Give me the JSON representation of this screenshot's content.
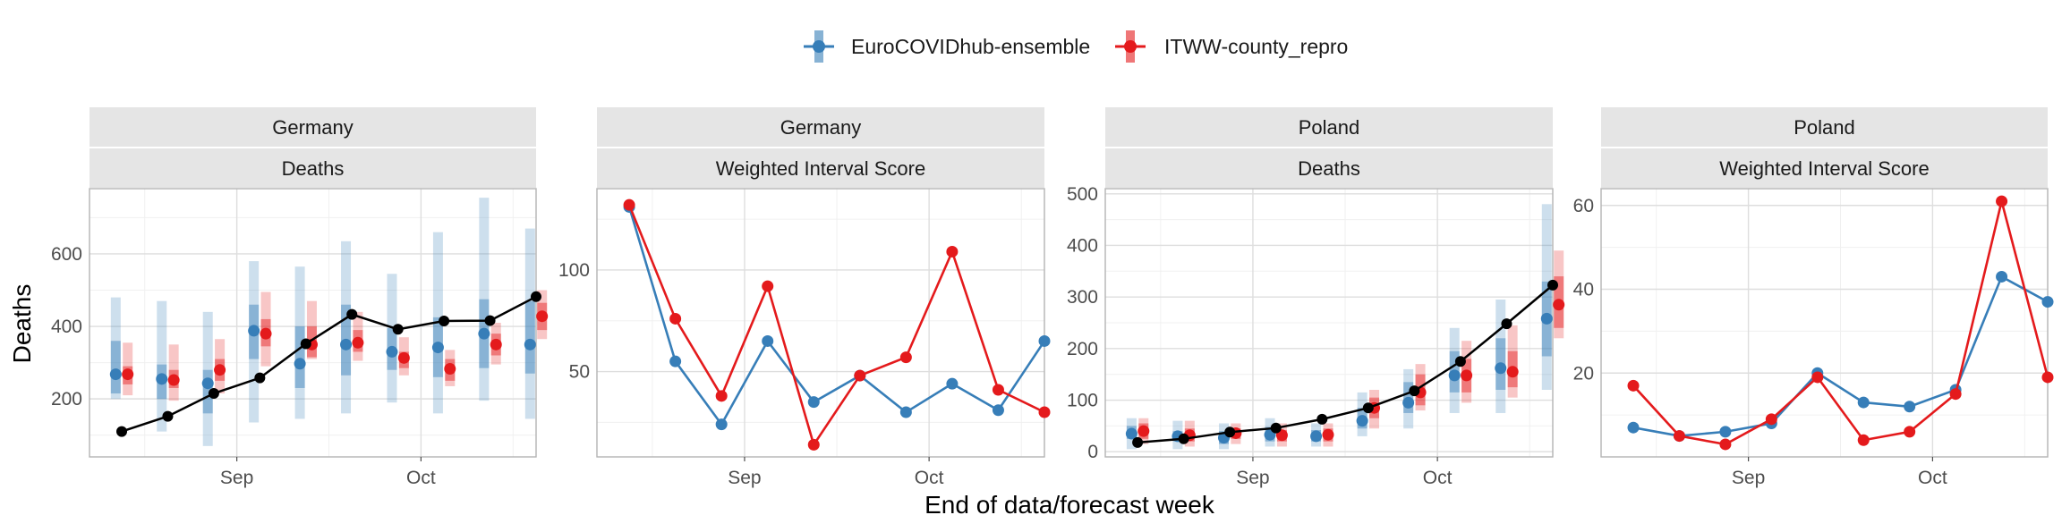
{
  "legend": {
    "position": "top",
    "entries": [
      {
        "name": "EuroCOVIDhub-ensemble",
        "color": "#377EB8"
      },
      {
        "name": "ITWW-county_repro",
        "color": "#E41A1C"
      }
    ]
  },
  "axes": {
    "xlabel": "End of data/forecast week",
    "ylabel": "Deaths"
  },
  "chart_data": [
    {
      "type": "line",
      "panel": "germany-deaths",
      "facet_labels": [
        "Germany",
        "Deaths"
      ],
      "x_ticks": [
        {
          "label": "Sep",
          "pos": 3.5
        },
        {
          "label": "Oct",
          "pos": 7.5
        }
      ],
      "x_range": [
        0.3,
        10.0
      ],
      "ylim": [
        40,
        780
      ],
      "y_ticks": [
        200,
        400,
        600
      ],
      "y_minor": [
        100,
        300,
        500,
        700
      ],
      "observed": [
        110,
        152,
        215,
        258,
        352,
        433,
        392,
        415,
        416,
        482
      ],
      "series": [
        {
          "name": "EuroCOVIDhub-ensemble",
          "median": [
            268,
            255,
            243,
            388,
            297,
            350,
            330,
            342,
            380,
            350
          ],
          "inner": [
            [
              215,
              360
            ],
            [
              200,
              295
            ],
            [
              160,
              280
            ],
            [
              310,
              460
            ],
            [
              230,
              400
            ],
            [
              265,
              460
            ],
            [
              280,
              395
            ],
            [
              260,
              425
            ],
            [
              285,
              475
            ],
            [
              270,
              470
            ]
          ],
          "outer": [
            [
              200,
              480
            ],
            [
              110,
              470
            ],
            [
              70,
              440
            ],
            [
              135,
              580
            ],
            [
              145,
              565
            ],
            [
              160,
              635
            ],
            [
              190,
              545
            ],
            [
              160,
              660
            ],
            [
              195,
              755
            ],
            [
              145,
              670
            ]
          ]
        },
        {
          "name": "ITWW-county_repro",
          "median": [
            268,
            252,
            280,
            380,
            350,
            355,
            313,
            283,
            350,
            428
          ],
          "inner": [
            [
              240,
              290
            ],
            [
              230,
              280
            ],
            [
              250,
              310
            ],
            [
              345,
              420
            ],
            [
              315,
              400
            ],
            [
              330,
              390
            ],
            [
              285,
              330
            ],
            [
              250,
              310
            ],
            [
              320,
              380
            ],
            [
              390,
              465
            ]
          ],
          "outer": [
            [
              210,
              355
            ],
            [
              195,
              350
            ],
            [
              215,
              365
            ],
            [
              290,
              495
            ],
            [
              310,
              470
            ],
            [
              305,
              440
            ],
            [
              265,
              370
            ],
            [
              235,
              335
            ],
            [
              295,
              410
            ],
            [
              365,
              500
            ]
          ]
        }
      ]
    },
    {
      "type": "line",
      "panel": "germany-wis",
      "facet_labels": [
        "Germany",
        "Weighted Interval Score"
      ],
      "x_ticks": [
        {
          "label": "Sep",
          "pos": 3.5
        },
        {
          "label": "Oct",
          "pos": 7.5
        }
      ],
      "x_range": [
        0.3,
        10.0
      ],
      "ylim": [
        8,
        140
      ],
      "y_ticks": [
        50,
        100
      ],
      "y_minor": [
        25,
        75,
        125
      ],
      "series": [
        {
          "name": "EuroCOVIDhub-ensemble",
          "values": [
            131,
            55,
            24,
            65,
            35,
            48,
            30,
            44,
            31,
            65
          ]
        },
        {
          "name": "ITWW-county_repro",
          "values": [
            132,
            76,
            38,
            92,
            14,
            48,
            57,
            109,
            41,
            30
          ]
        }
      ]
    },
    {
      "type": "line",
      "panel": "poland-deaths",
      "facet_labels": [
        "Poland",
        "Deaths"
      ],
      "x_ticks": [
        {
          "label": "Sep",
          "pos": 3.5
        },
        {
          "label": "Oct",
          "pos": 7.5
        }
      ],
      "x_range": [
        0.3,
        10.0
      ],
      "ylim": [
        -10,
        510
      ],
      "y_ticks": [
        0,
        100,
        200,
        300,
        400,
        500
      ],
      "y_minor": [
        50,
        150,
        250,
        350,
        450
      ],
      "observed": [
        18,
        25,
        38,
        46,
        63,
        85,
        118,
        175,
        248,
        323
      ],
      "series": [
        {
          "name": "EuroCOVIDhub-ensemble",
          "median": [
            35,
            30,
            27,
            33,
            30,
            60,
            95,
            148,
            162,
            258
          ],
          "inner": [
            [
              25,
              50
            ],
            [
              20,
              40
            ],
            [
              15,
              40
            ],
            [
              20,
              48
            ],
            [
              20,
              42
            ],
            [
              45,
              85
            ],
            [
              75,
              135
            ],
            [
              115,
              195
            ],
            [
              120,
              220
            ],
            [
              185,
              330
            ]
          ],
          "outer": [
            [
              5,
              65
            ],
            [
              5,
              60
            ],
            [
              5,
              55
            ],
            [
              10,
              65
            ],
            [
              10,
              55
            ],
            [
              30,
              115
            ],
            [
              45,
              160
            ],
            [
              75,
              240
            ],
            [
              75,
              295
            ],
            [
              120,
              480
            ]
          ]
        },
        {
          "name": "ITWW-county_repro",
          "median": [
            40,
            32,
            36,
            32,
            33,
            85,
            115,
            148,
            155,
            285
          ],
          "inner": [
            [
              25,
              55
            ],
            [
              20,
              45
            ],
            [
              25,
              45
            ],
            [
              20,
              42
            ],
            [
              20,
              45
            ],
            [
              65,
              105
            ],
            [
              90,
              150
            ],
            [
              115,
              180
            ],
            [
              125,
              195
            ],
            [
              240,
              340
            ]
          ],
          "outer": [
            [
              15,
              65
            ],
            [
              10,
              60
            ],
            [
              15,
              55
            ],
            [
              10,
              55
            ],
            [
              10,
              55
            ],
            [
              45,
              120
            ],
            [
              80,
              170
            ],
            [
              95,
              215
            ],
            [
              105,
              245
            ],
            [
              220,
              390
            ]
          ]
        }
      ]
    },
    {
      "type": "line",
      "panel": "poland-wis",
      "facet_labels": [
        "Poland",
        "Weighted Interval Score"
      ],
      "x_ticks": [
        {
          "label": "Sep",
          "pos": 3.5
        },
        {
          "label": "Oct",
          "pos": 7.5
        }
      ],
      "x_range": [
        0.3,
        10.0
      ],
      "ylim": [
        0,
        64
      ],
      "y_ticks": [
        20,
        40,
        60
      ],
      "y_minor": [
        10,
        30,
        50
      ],
      "series": [
        {
          "name": "EuroCOVIDhub-ensemble",
          "values": [
            7,
            5,
            6,
            8,
            20,
            13,
            12,
            16,
            43,
            37
          ]
        },
        {
          "name": "ITWW-county_repro",
          "values": [
            17,
            5,
            3,
            9,
            19,
            4,
            6,
            15,
            61,
            19
          ]
        }
      ]
    }
  ]
}
